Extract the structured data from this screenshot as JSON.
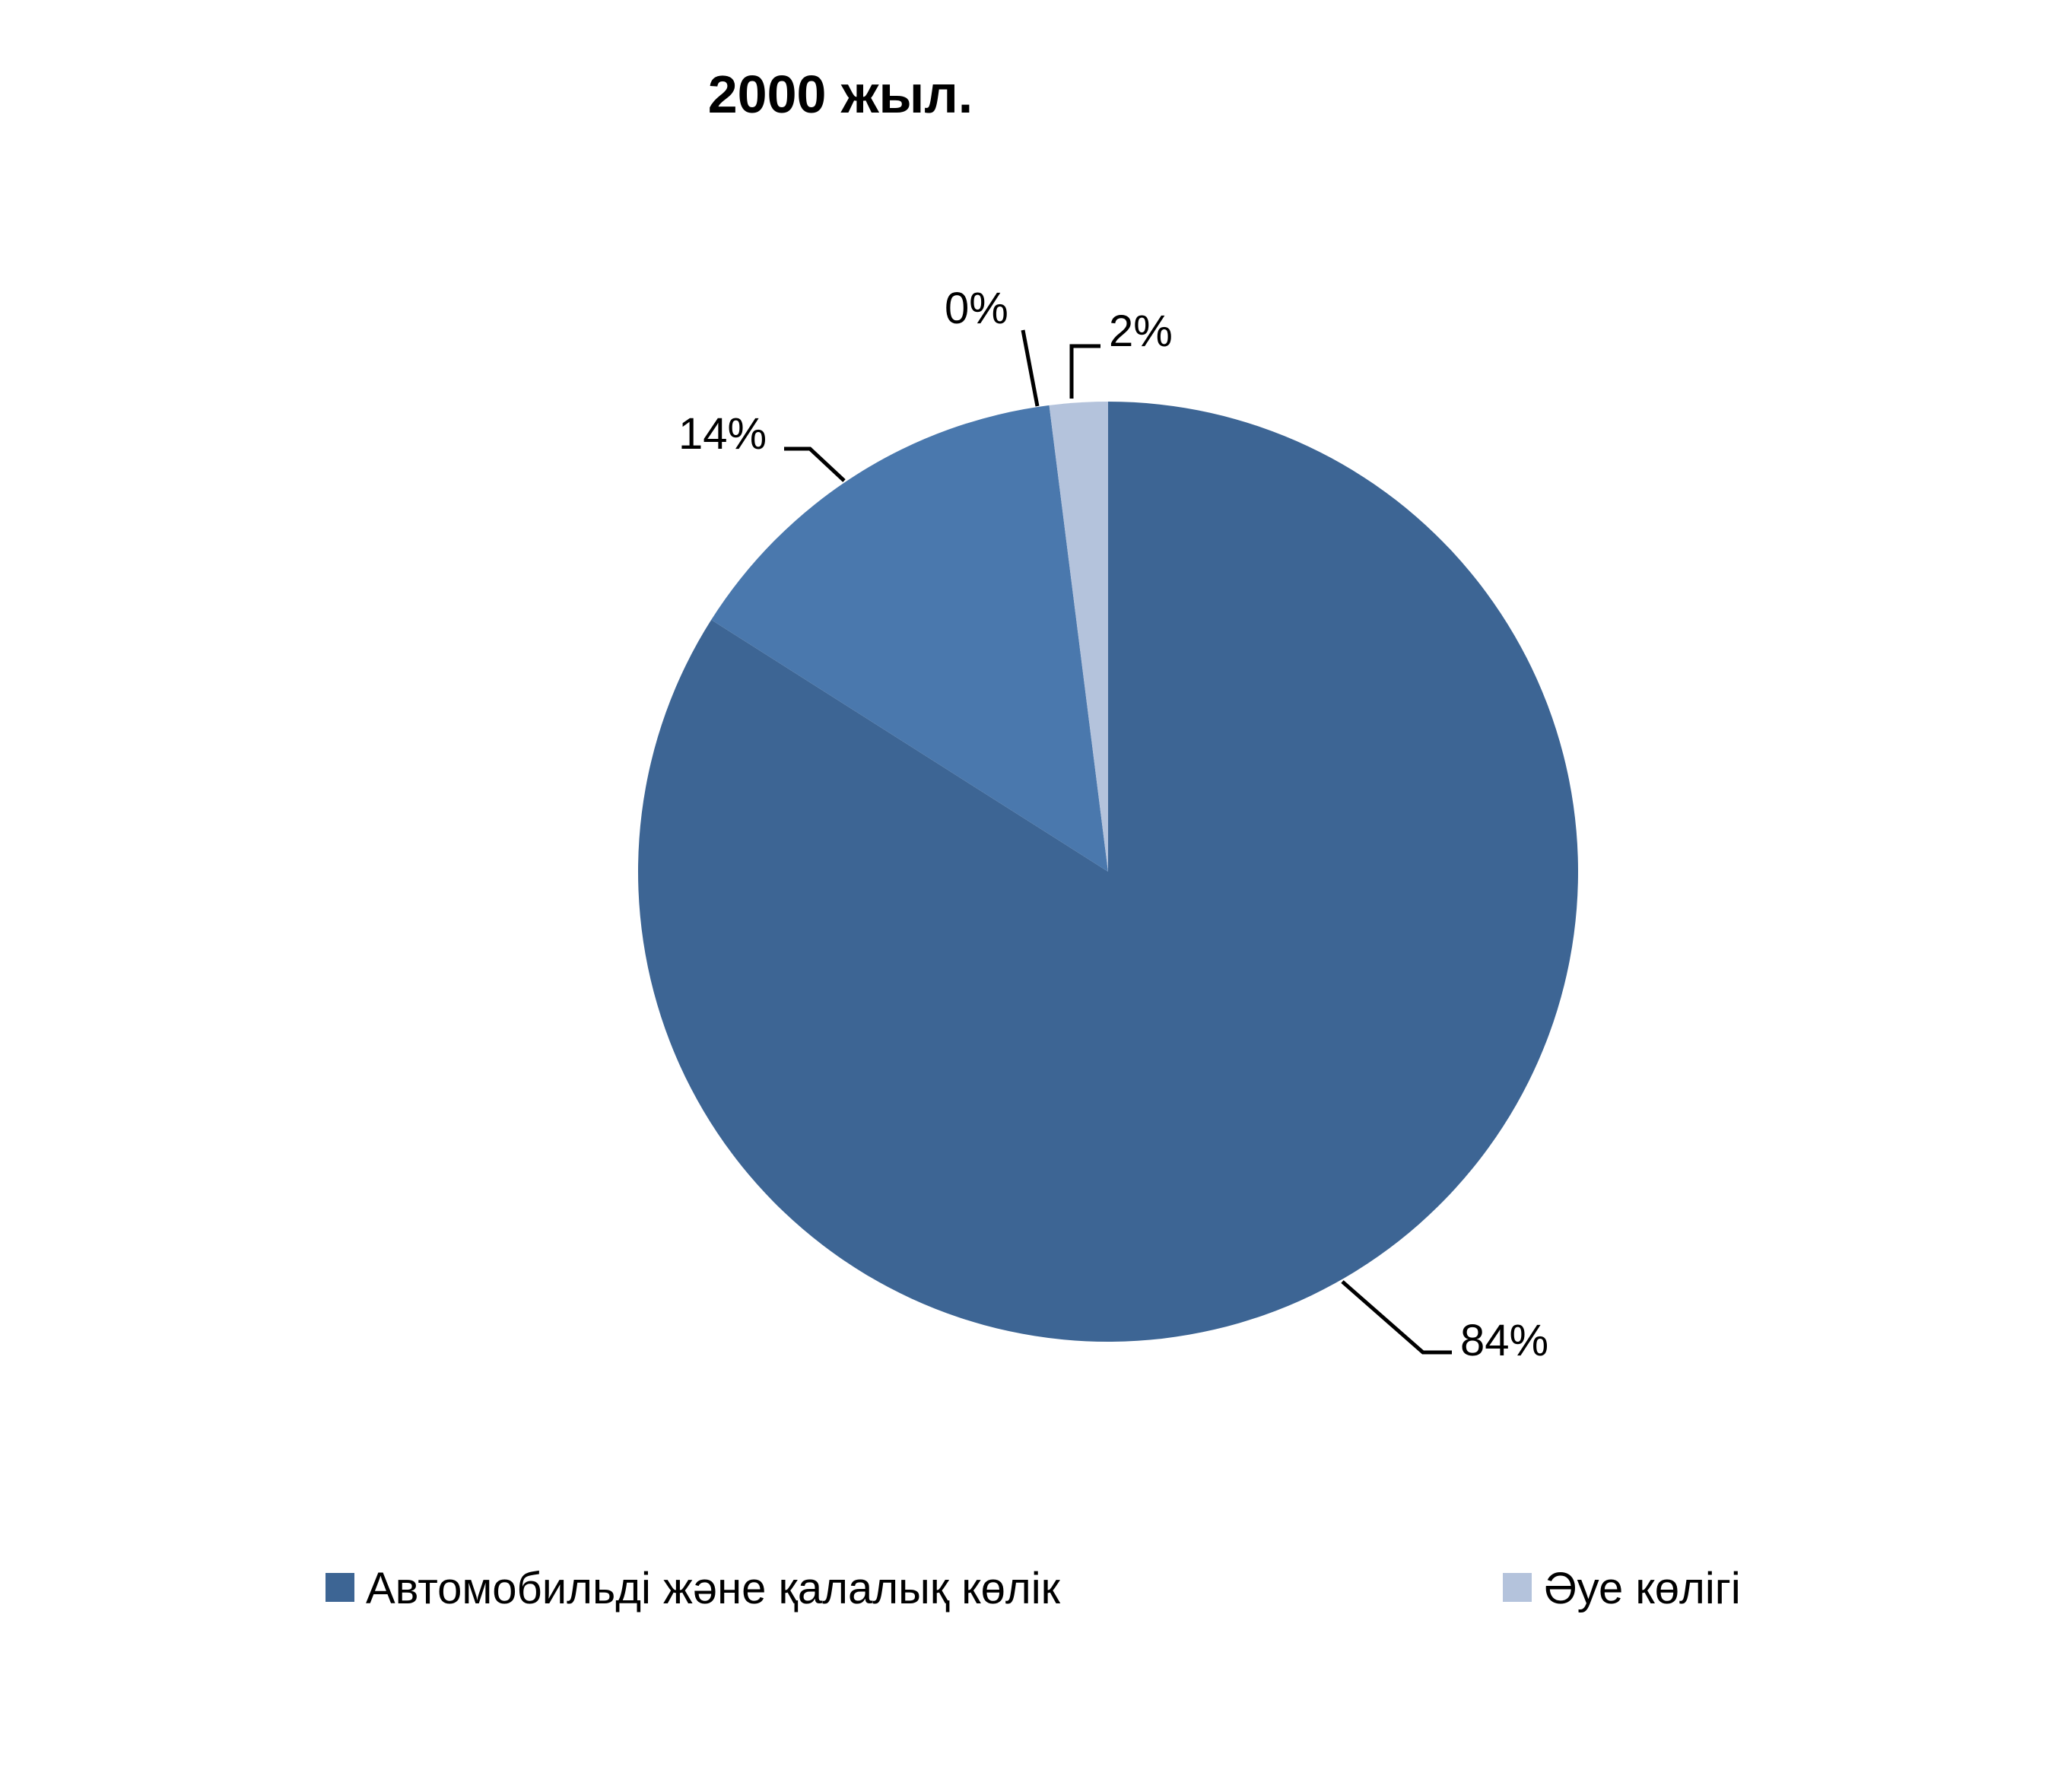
{
  "chart_data": {
    "type": "pie",
    "title": "2000 жыл.",
    "start_angle": "12 o'clock, clockwise",
    "slices": [
      {
        "value": 84,
        "label": "84%",
        "color": "#3D6594",
        "legend": "Автомобильді және қалалық көлік"
      },
      {
        "value": 14,
        "label": "14%",
        "color": "#4A78AD",
        "legend": ""
      },
      {
        "value": 0,
        "label": "0%",
        "color": "#7F9CC8",
        "legend": ""
      },
      {
        "value": 2,
        "label": "2%",
        "color": "#B4C3DC",
        "legend": "Әуе көлігі"
      }
    ],
    "legend_position": "bottom"
  }
}
